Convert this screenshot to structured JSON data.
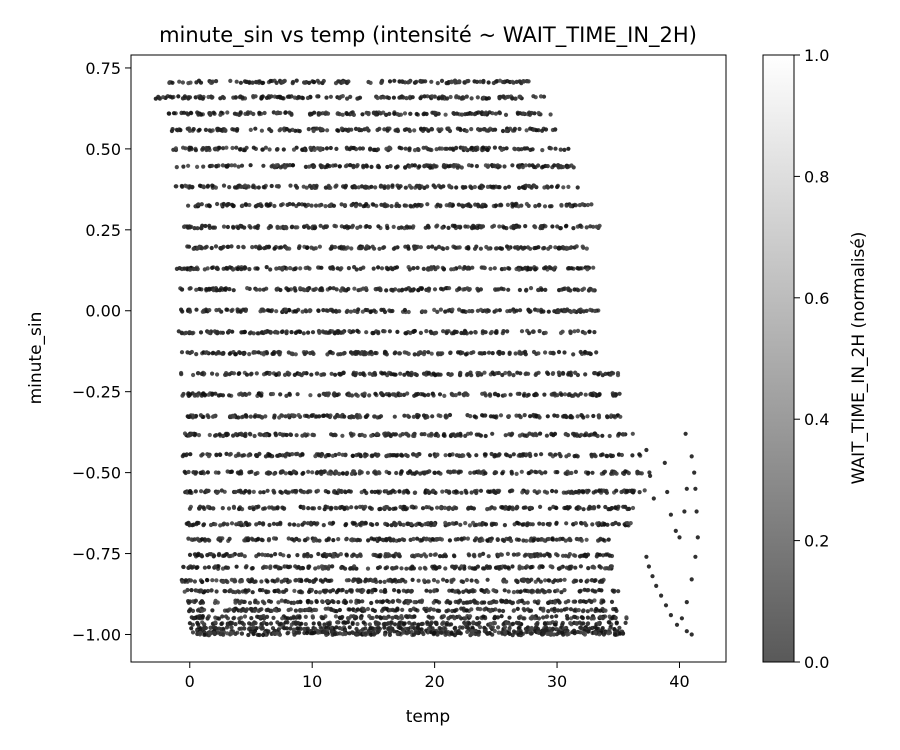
{
  "chart_data": {
    "type": "scatter",
    "title": "minute_sin vs temp (intensité ~ WAIT_TIME_IN_2H)",
    "xlabel": "temp",
    "ylabel": "minute_sin",
    "xlim": [
      -4.8,
      43.8
    ],
    "ylim": [
      -1.085,
      0.79
    ],
    "x_ticks": [
      0,
      10,
      20,
      30,
      40
    ],
    "x_tick_labels": [
      "0",
      "10",
      "20",
      "30",
      "40"
    ],
    "y_ticks": [
      -1.0,
      -0.75,
      -0.5,
      -0.25,
      0.0,
      0.25,
      0.5,
      0.75
    ],
    "y_tick_labels": [
      "−1.00",
      "−0.75",
      "−0.50",
      "−0.25",
      "0.00",
      "0.25",
      "0.50",
      "0.75"
    ],
    "grid": false,
    "marker_color": "#1a1a1a",
    "colorbar": {
      "label": "WAIT_TIME_IN_2H (normalisé)",
      "range": [
        0.0,
        1.0
      ],
      "ticks": [
        0.0,
        0.2,
        0.4,
        0.6,
        0.8,
        1.0
      ],
      "tick_labels": [
        "0.0",
        "0.2",
        "0.4",
        "0.6",
        "0.8",
        "1.0"
      ],
      "color_low": "#595959",
      "color_high": "#ffffff"
    },
    "point_bands": [
      {
        "y": 0.707,
        "x_min": -1.8,
        "x_max": 27.8
      },
      {
        "y": 0.659,
        "x_min": -2.8,
        "x_max": 29.0
      },
      {
        "y": 0.609,
        "x_min": -1.8,
        "x_max": 29.5
      },
      {
        "y": 0.559,
        "x_min": -1.6,
        "x_max": 30.0
      },
      {
        "y": 0.5,
        "x_min": -1.4,
        "x_max": 31.0
      },
      {
        "y": 0.446,
        "x_min": -1.2,
        "x_max": 31.5
      },
      {
        "y": 0.383,
        "x_min": -1.2,
        "x_max": 31.8
      },
      {
        "y": 0.326,
        "x_min": -1.0,
        "x_max": 33.0
      },
      {
        "y": 0.259,
        "x_min": -0.5,
        "x_max": 33.5
      },
      {
        "y": 0.195,
        "x_min": -0.3,
        "x_max": 32.5
      },
      {
        "y": 0.131,
        "x_min": -1.2,
        "x_max": 33.0
      },
      {
        "y": 0.066,
        "x_min": -0.8,
        "x_max": 33.3
      },
      {
        "y": 0.0,
        "x_min": -1.0,
        "x_max": 33.8
      },
      {
        "y": -0.066,
        "x_min": -1.0,
        "x_max": 33.2
      },
      {
        "y": -0.131,
        "x_min": -0.8,
        "x_max": 33.5
      },
      {
        "y": -0.195,
        "x_min": -0.8,
        "x_max": 35.0
      },
      {
        "y": -0.259,
        "x_min": -0.6,
        "x_max": 35.5
      },
      {
        "y": -0.326,
        "x_min": -0.6,
        "x_max": 35.2
      },
      {
        "y": -0.383,
        "x_min": -0.5,
        "x_max": 36.2
      },
      {
        "y": -0.446,
        "x_min": -0.6,
        "x_max": 37.0
      },
      {
        "y": -0.5,
        "x_min": -0.6,
        "x_max": 37.8
      },
      {
        "y": -0.559,
        "x_min": -0.4,
        "x_max": 37.2
      },
      {
        "y": -0.609,
        "x_min": -0.3,
        "x_max": 36.5
      },
      {
        "y": -0.659,
        "x_min": -0.3,
        "x_max": 36.2
      },
      {
        "y": -0.707,
        "x_min": -0.2,
        "x_max": 34.8
      },
      {
        "y": -0.755,
        "x_min": 0.0,
        "x_max": 34.5
      },
      {
        "y": -0.793,
        "x_min": -0.6,
        "x_max": 34.5
      },
      {
        "y": -0.834,
        "x_min": -0.8,
        "x_max": 34.2
      },
      {
        "y": -0.866,
        "x_min": -0.8,
        "x_max": 35.0
      },
      {
        "y": -0.899,
        "x_min": -0.6,
        "x_max": 34.5
      },
      {
        "y": -0.924,
        "x_min": -0.4,
        "x_max": 35.0
      },
      {
        "y": -0.947,
        "x_min": -0.2,
        "x_max": 36.0
      },
      {
        "y": -0.966,
        "x_min": 0.0,
        "x_max": 36.0
      },
      {
        "y": -0.981,
        "x_min": 0.0,
        "x_max": 35.5
      },
      {
        "y": -0.992,
        "x_min": 0.2,
        "x_max": 35.5
      },
      {
        "y": -0.998,
        "x_min": 0.5,
        "x_max": 35.5
      }
    ],
    "extra_points": [
      [
        40.5,
        -0.38
      ],
      [
        41.0,
        -0.45
      ],
      [
        41.2,
        -0.5
      ],
      [
        41.3,
        -0.55
      ],
      [
        41.4,
        -0.62
      ],
      [
        41.5,
        -0.7
      ],
      [
        41.3,
        -0.76
      ],
      [
        41.0,
        -0.83
      ],
      [
        40.6,
        -0.9
      ],
      [
        40.2,
        -0.95
      ],
      [
        40.6,
        -0.99
      ],
      [
        41.0,
        -1.0
      ],
      [
        39.8,
        -0.97
      ],
      [
        39.3,
        -0.94
      ],
      [
        38.9,
        -0.91
      ],
      [
        38.5,
        -0.88
      ],
      [
        38.1,
        -0.85
      ],
      [
        37.8,
        -0.82
      ],
      [
        37.5,
        -0.79
      ],
      [
        37.3,
        -0.76
      ],
      [
        38.8,
        -0.47
      ],
      [
        39.0,
        -0.56
      ],
      [
        39.3,
        -0.63
      ],
      [
        39.7,
        -0.68
      ],
      [
        40.0,
        -0.7
      ],
      [
        40.4,
        -0.62
      ],
      [
        40.6,
        -0.55
      ],
      [
        37.3,
        -0.43
      ],
      [
        37.6,
        -0.51
      ],
      [
        37.9,
        -0.58
      ]
    ]
  }
}
